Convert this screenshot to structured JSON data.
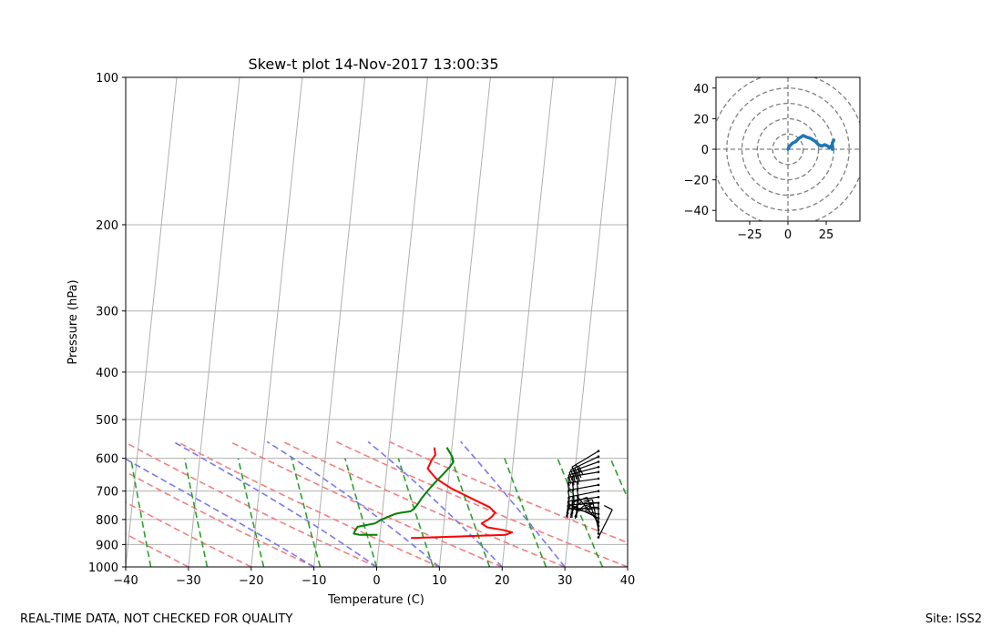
{
  "chart_data": [
    {
      "type": "line",
      "name": "skew-t",
      "title": "Skew-t plot 14-Nov-2017 13:00:35",
      "xlabel": "Temperature (C)",
      "ylabel": "Pressure (hPa)",
      "xlim": [
        -40,
        40
      ],
      "ylim": [
        1000,
        100
      ],
      "xticks": [
        -40,
        -30,
        -20,
        -10,
        0,
        10,
        20,
        30,
        40
      ],
      "yticks": [
        100,
        200,
        300,
        400,
        500,
        600,
        700,
        800,
        900,
        1000
      ],
      "skew_per_decade": 56,
      "grid": true,
      "series": [
        {
          "name": "Temperature",
          "color": "#ff0000",
          "points": [
            [
              5.0,
              873
            ],
            [
              20.0,
              860
            ],
            [
              21.0,
              850
            ],
            [
              19.5,
              840
            ],
            [
              17.0,
              830
            ],
            [
              16.0,
              815
            ],
            [
              17.0,
              800
            ],
            [
              17.5,
              790
            ],
            [
              18.0,
              775
            ],
            [
              17.0,
              755
            ],
            [
              13.5,
              720
            ],
            [
              10.5,
              690
            ],
            [
              8.0,
              660
            ],
            [
              6.5,
              630
            ],
            [
              7.0,
              605
            ],
            [
              7.5,
              590
            ],
            [
              7.2,
              570
            ]
          ]
        },
        {
          "name": "Dewpoint",
          "color": "#008000",
          "points": [
            [
              -0.4,
              860
            ],
            [
              -3.2,
              860
            ],
            [
              -4.2,
              855
            ],
            [
              -4.0,
              840
            ],
            [
              -3.7,
              828
            ],
            [
              -1.0,
              815
            ],
            [
              0.0,
              800
            ],
            [
              1.0,
              790
            ],
            [
              2.0,
              780
            ],
            [
              3.0,
              775
            ],
            [
              4.5,
              770
            ],
            [
              5.0,
              760
            ],
            [
              5.5,
              745
            ],
            [
              6.0,
              725
            ],
            [
              7.0,
              695
            ],
            [
              8.0,
              670
            ],
            [
              9.0,
              648
            ],
            [
              10.0,
              625
            ],
            [
              10.5,
              610
            ],
            [
              10.2,
              595
            ],
            [
              9.6,
              580
            ],
            [
              9.2,
              570
            ]
          ]
        }
      ],
      "dry_adiabats_T0": [
        -30,
        -20,
        -10,
        0,
        10,
        20,
        30,
        40,
        50
      ],
      "moist_adiabats_T0": [
        -10,
        0,
        10,
        20,
        30
      ],
      "mixing_ratio_T0": [
        -36,
        -27,
        -18,
        -9,
        0,
        9,
        18,
        27,
        36,
        45
      ],
      "colors": {
        "dry": "#f08080",
        "moist": "#7878f0",
        "mixing": "#2ca02c",
        "grid": "#b0b0b0"
      },
      "wind_barbs": {
        "units": "kt",
        "barbs": [
          {
            "p": 870,
            "u": -4,
            "v": -8
          },
          {
            "p": 855,
            "u": 0,
            "v": -20
          },
          {
            "p": 840,
            "u": 5,
            "v": -25
          },
          {
            "p": 825,
            "u": 10,
            "v": -25
          },
          {
            "p": 810,
            "u": 18,
            "v": -22
          },
          {
            "p": 795,
            "u": 25,
            "v": -12
          },
          {
            "p": 780,
            "u": 25,
            "v": -5
          },
          {
            "p": 760,
            "u": 25,
            "v": 0
          },
          {
            "p": 740,
            "u": 28,
            "v": 2
          },
          {
            "p": 720,
            "u": 30,
            "v": 4
          },
          {
            "p": 700,
            "u": 30,
            "v": 6
          },
          {
            "p": 680,
            "u": 28,
            "v": 5
          },
          {
            "p": 660,
            "u": 28,
            "v": 4
          },
          {
            "p": 640,
            "u": 30,
            "v": 5
          },
          {
            "p": 625,
            "u": 30,
            "v": 8
          },
          {
            "p": 610,
            "u": 28,
            "v": 10
          },
          {
            "p": 595,
            "u": 25,
            "v": 12
          },
          {
            "p": 580,
            "u": 20,
            "v": 12
          }
        ]
      }
    },
    {
      "type": "line",
      "name": "hodograph",
      "xlim": [
        -47,
        47
      ],
      "ylim": [
        -47,
        47
      ],
      "xticks": [
        -25,
        0,
        25
      ],
      "yticks": [
        -40,
        -20,
        0,
        20,
        40
      ],
      "rings": [
        10,
        20,
        30,
        40,
        50
      ],
      "color": "#1f77b4",
      "points": [
        [
          0,
          0
        ],
        [
          1,
          2
        ],
        [
          3,
          4
        ],
        [
          5,
          5
        ],
        [
          7,
          7
        ],
        [
          10,
          9
        ],
        [
          12,
          8
        ],
        [
          15,
          7
        ],
        [
          18,
          5
        ],
        [
          20,
          3
        ],
        [
          22,
          2
        ],
        [
          24,
          3
        ],
        [
          26,
          2
        ],
        [
          27,
          1
        ],
        [
          28,
          2
        ],
        [
          29,
          0
        ],
        [
          29,
          4
        ],
        [
          30,
          6
        ]
      ]
    }
  ],
  "footer": {
    "left": "REAL-TIME DATA, NOT CHECKED FOR QUALITY",
    "right": "Site: ISS2"
  }
}
